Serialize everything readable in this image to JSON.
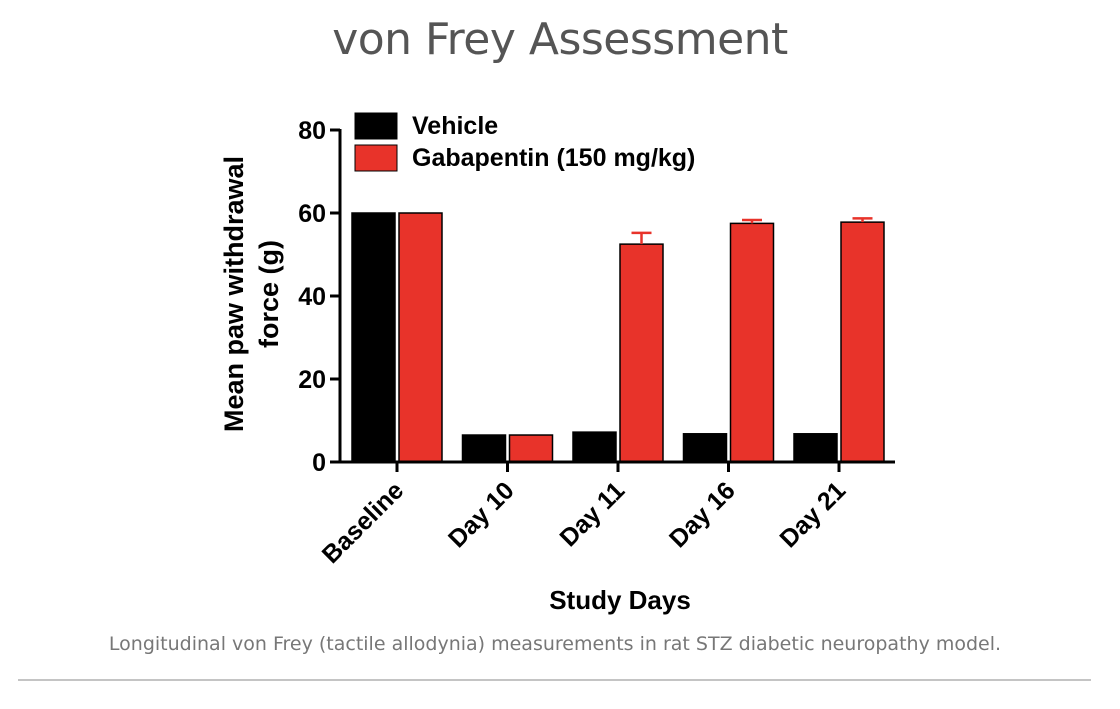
{
  "title": "von Frey Assessment",
  "caption": "Longitudinal von Frey (tactile allodynia) measurements in rat STZ diabetic neuropathy model.",
  "chart_data": {
    "type": "bar",
    "xlabel": "Study Days",
    "ylabel_lines": [
      "Mean paw withdrawal",
      "force (g)"
    ],
    "ylim": [
      0,
      80
    ],
    "yticks": [
      0,
      20,
      40,
      60,
      80
    ],
    "categories": [
      "Baseline",
      "Day 10",
      "Day 11",
      "Day 16",
      "Day 21"
    ],
    "legend_placement": "top-left",
    "series": [
      {
        "name": "Vehicle",
        "color": "#000000",
        "values": [
          60,
          6.5,
          7.2,
          6.8,
          6.8
        ],
        "errors": [
          0,
          0,
          0,
          0,
          0
        ]
      },
      {
        "name": "Gabapentin (150 mg/kg)",
        "color": "#e8332a",
        "values": [
          60,
          6.5,
          52.5,
          57.5,
          57.8
        ],
        "errors": [
          0,
          0,
          2.7,
          0.8,
          0.9
        ]
      }
    ]
  }
}
